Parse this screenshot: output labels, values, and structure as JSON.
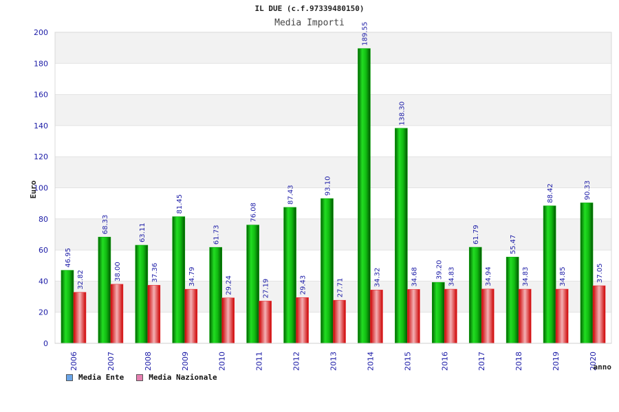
{
  "header": {
    "title": "IL DUE (c.f.97339480150)",
    "subtitle": "Media Importi"
  },
  "legend": {
    "items": [
      {
        "label": "Media Ente",
        "color": "#6aa5e8"
      },
      {
        "label": "Media Nazionale",
        "color": "#e57fb0"
      }
    ]
  },
  "colors": {
    "ente_bar": "#0aa80a",
    "nazionale_bar": "#e8323a",
    "axis_text": "#1a1aa6",
    "band": "#f2f2f2"
  },
  "chart_data": {
    "type": "bar",
    "title": "Media Importi",
    "ylabel": "Euro",
    "xlabel": "anno",
    "ylim": [
      0,
      200
    ],
    "y_ticks": [
      0,
      20,
      40,
      60,
      80,
      100,
      120,
      140,
      160,
      180,
      200
    ],
    "grid": true,
    "legend_position": "bottom-left",
    "categories": [
      "2006",
      "2007",
      "2008",
      "2009",
      "2010",
      "2011",
      "2012",
      "2013",
      "2014",
      "2015",
      "2016",
      "2017",
      "2018",
      "2019",
      "2020"
    ],
    "series": [
      {
        "name": "Media Ente",
        "values": [
          46.95,
          68.33,
          63.11,
          81.45,
          61.73,
          76.08,
          87.43,
          93.1,
          189.55,
          138.3,
          39.2,
          61.79,
          55.47,
          88.42,
          90.33
        ],
        "labels": [
          "46.95",
          "68.33",
          "63.11",
          "81.45",
          "61.73",
          "76.08",
          "87.43",
          "93.10",
          "189.55",
          "138.30",
          "39.20",
          "61.79",
          "55.47",
          "88.42",
          "90.33"
        ]
      },
      {
        "name": "Media Nazionale",
        "values": [
          32.82,
          38.0,
          37.36,
          34.79,
          29.24,
          27.19,
          29.43,
          27.71,
          34.32,
          34.68,
          34.83,
          34.94,
          34.83,
          34.85,
          37.05
        ],
        "labels": [
          "32.82",
          "38.00",
          "37.36",
          "34.79",
          "29.24",
          "27.19",
          "29.43",
          "27.71",
          "34.32",
          "34.68",
          "34.83",
          "34.94",
          "34.83",
          "34.85",
          "37.05"
        ]
      }
    ]
  }
}
